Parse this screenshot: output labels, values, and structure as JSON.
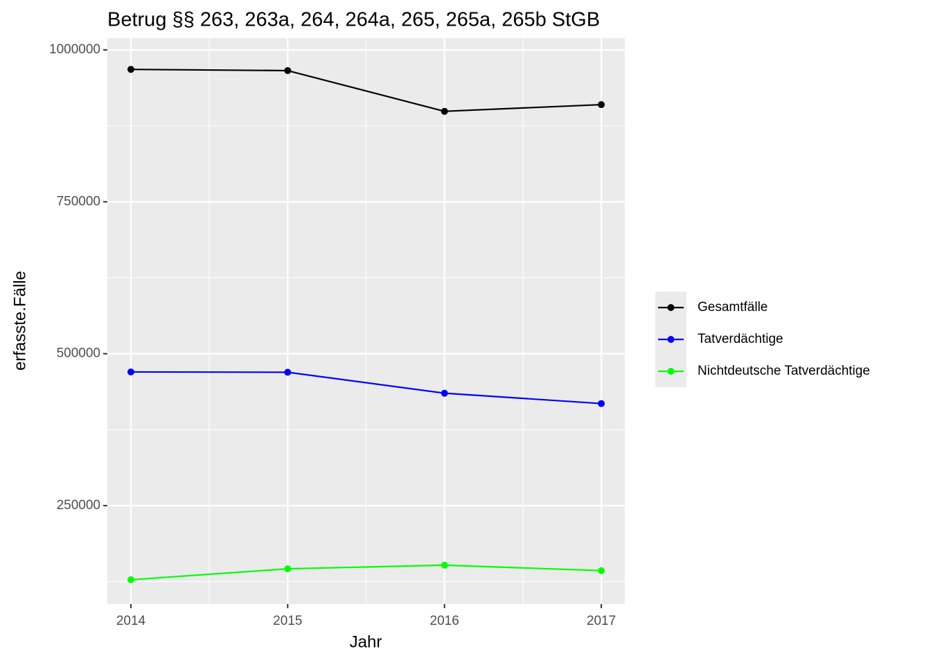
{
  "chart_data": {
    "type": "line",
    "title": "Betrug §§ 263, 263a, 264, 264a, 265, 265a, 265b StGB",
    "x_label": "Jahr",
    "y_label": "erfasste.Fälle",
    "x": [
      2014,
      2015,
      2016,
      2017
    ],
    "xlim": [
      2013.85,
      2017.15
    ],
    "xticks": [
      2014,
      2015,
      2016,
      2017
    ],
    "ylim": [
      88000,
      1019500
    ],
    "yticks": [
      250000,
      500000,
      750000,
      1000000
    ],
    "grid": true,
    "legend": "right",
    "series": [
      {
        "name": "Gesamtfälle",
        "color": "#000000",
        "values": [
          968000,
          966000,
          899000,
          910000
        ]
      },
      {
        "name": "Tatverdächtige",
        "color": "#0000ff",
        "values": [
          470000,
          469500,
          435000,
          418000
        ]
      },
      {
        "name": "Nichtdeutsche Tatverdächtige",
        "color": "#00ff00",
        "values": [
          128000,
          146000,
          152000,
          143000
        ]
      }
    ]
  }
}
